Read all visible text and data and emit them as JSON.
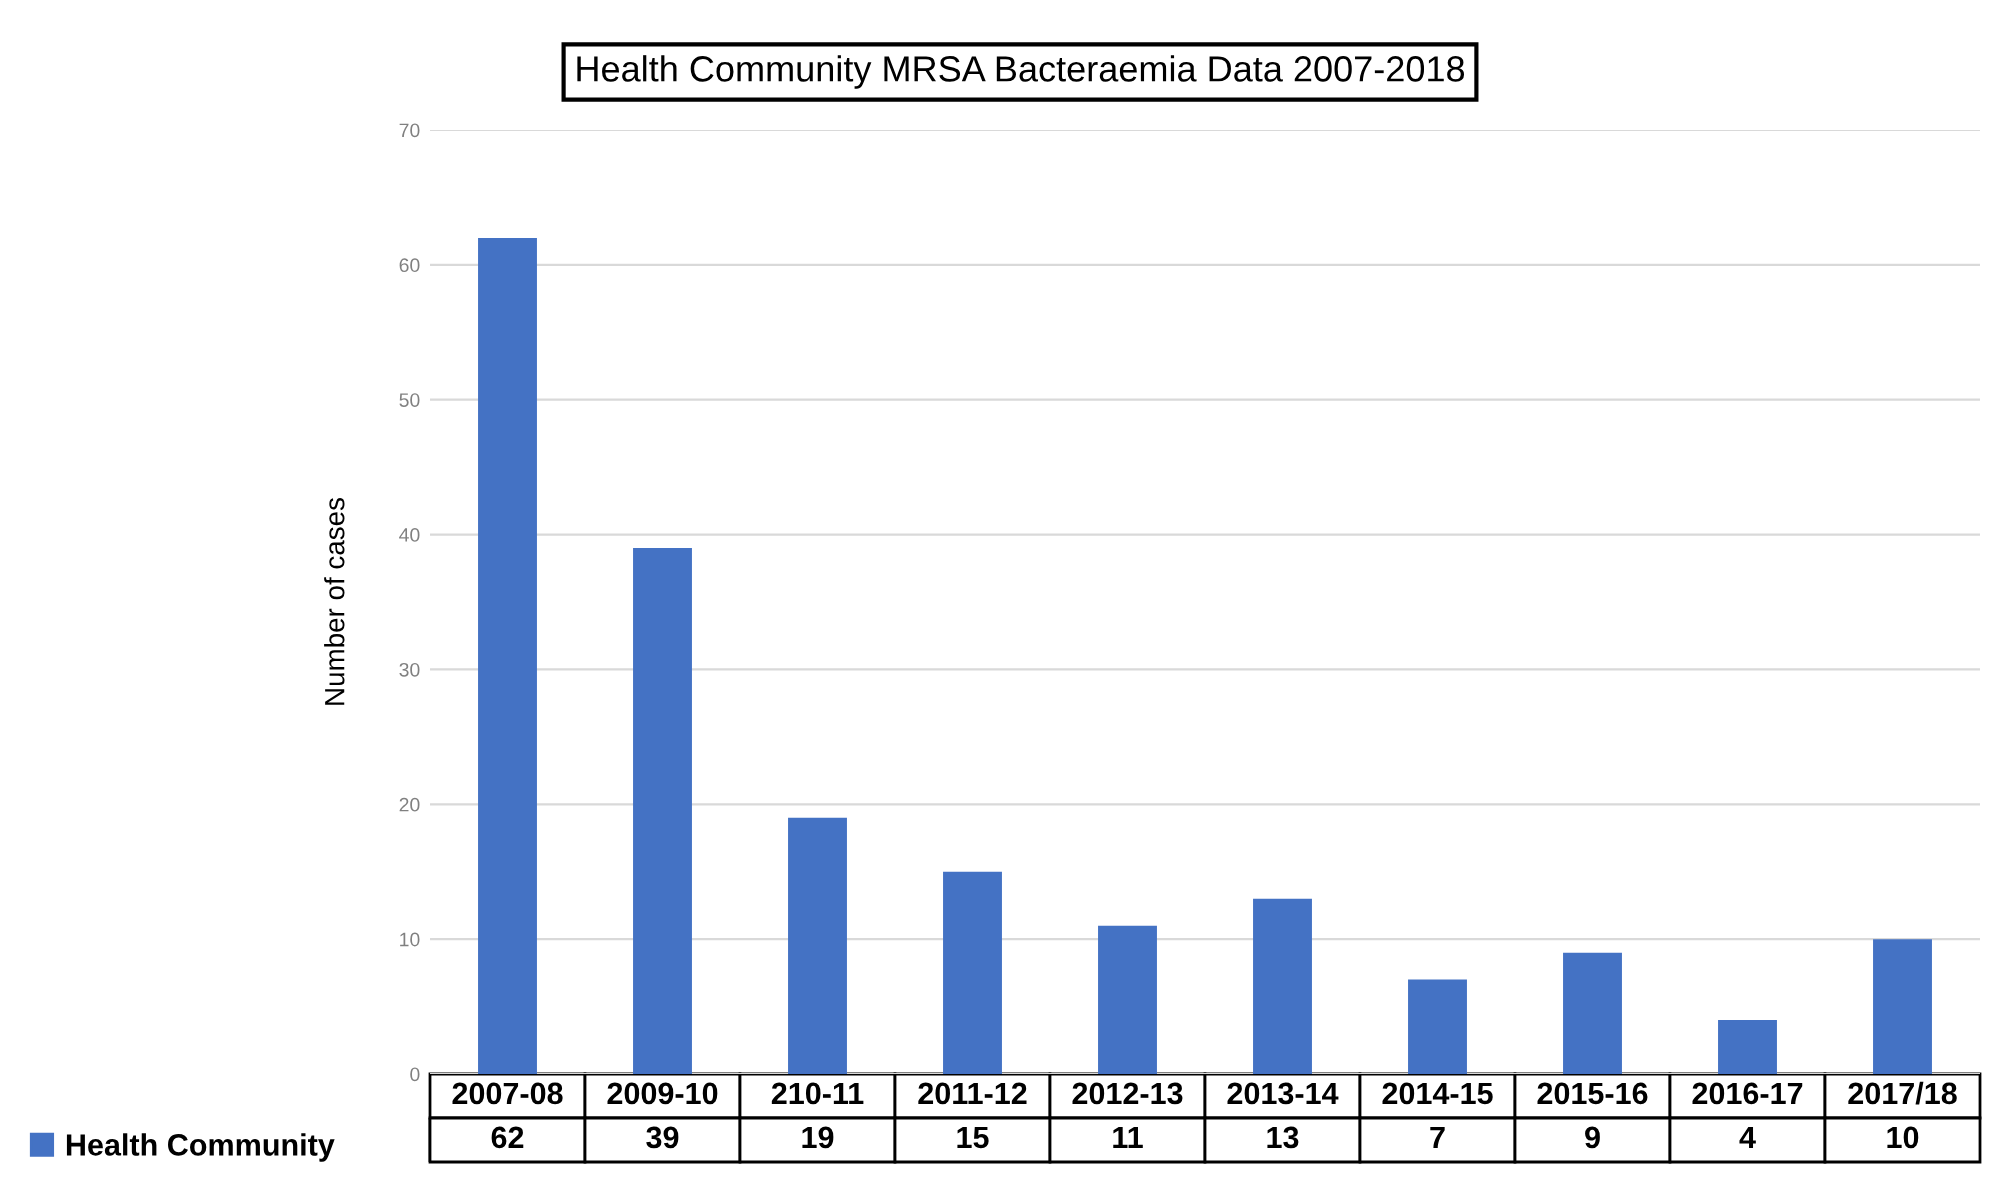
{
  "chart_data": {
    "type": "bar",
    "title": "Health Community MRSA Bacteraemia Data 2007-2018",
    "ylabel": "Number of cases",
    "categories": [
      "2007-08",
      "2009-10",
      "210-11",
      "2011-12",
      "2012-13",
      "2013-14",
      "2014-15",
      "2015-16",
      "2016-17",
      "2017/18"
    ],
    "series": [
      {
        "name": "Health Community",
        "color": "#4472c4",
        "values": [
          62,
          39,
          19,
          15,
          11,
          13,
          7,
          9,
          4,
          10
        ]
      }
    ],
    "ylim": [
      0,
      70
    ],
    "yticks": [
      0,
      10,
      20,
      30,
      40,
      50,
      60,
      70
    ],
    "grid": "y",
    "data_labels": true,
    "legend": "bottom"
  }
}
